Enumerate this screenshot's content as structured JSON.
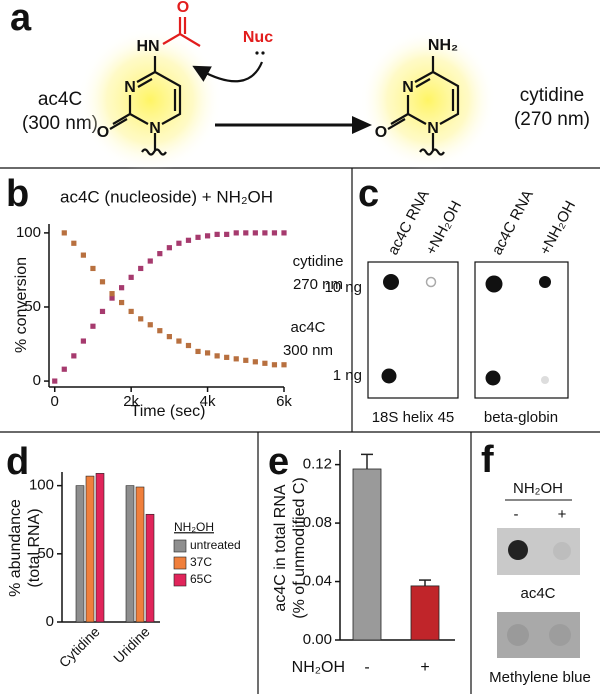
{
  "panel_a": {
    "label": "a",
    "left_label": [
      "ac4C",
      "(300 nm)"
    ],
    "right_label": [
      "cytidine",
      "(270 nm)"
    ],
    "nucleophile": "Nuc",
    "left_atoms": [
      "HN",
      "O",
      "N",
      "O",
      "N"
    ],
    "right_atoms": [
      "NH₂",
      "N",
      "O",
      "N"
    ]
  },
  "chart_data": [
    {
      "type": "scatter",
      "label": "b",
      "title": "ac4C (nucleoside) + NH₂OH",
      "x_label": "Time (sec)",
      "y_label": "% conversion",
      "x": [
        0,
        250,
        500,
        750,
        1000,
        1250,
        1500,
        1750,
        2000,
        2250,
        2500,
        2750,
        3000,
        3250,
        3500,
        3750,
        4000,
        4250,
        4500,
        4750,
        5000,
        5250,
        5500,
        5750,
        6000
      ],
      "series": [
        {
          "name": "cytidine",
          "wavelength": "270 nm",
          "color": "#a63a6e",
          "values": [
            0,
            8,
            17,
            27,
            37,
            47,
            56,
            63,
            70,
            76,
            81,
            86,
            90,
            93,
            95,
            97,
            98,
            99,
            99,
            100,
            100,
            100,
            100,
            100,
            100
          ]
        },
        {
          "name": "ac4C",
          "wavelength": "300 nm",
          "color": "#b8703f",
          "values": [
            null,
            100,
            93,
            85,
            76,
            67,
            59,
            53,
            47,
            42,
            38,
            34,
            30,
            27,
            24,
            20,
            19,
            17,
            16,
            15,
            14,
            13,
            12,
            11,
            11
          ]
        }
      ],
      "xlim": [
        -150,
        6000
      ],
      "xticks": [
        0,
        {
          "value": 2000,
          "label": "2k"
        },
        {
          "value": 4000,
          "label": "4k"
        },
        {
          "value": 6000,
          "label": "6k"
        }
      ],
      "ylim": [
        -4,
        106
      ],
      "yticks": [
        0,
        50,
        100
      ]
    },
    {
      "type": "bar",
      "label": "d",
      "y_label": [
        "% abundance",
        "(total RNA)"
      ],
      "categories": [
        "Cytidine",
        "Uridine"
      ],
      "legend_title": "NH₂OH",
      "series": [
        {
          "name": "untreated",
          "color": "#8e8e8e",
          "values": [
            100,
            100
          ]
        },
        {
          "name": "37C",
          "color": "#f07f3c",
          "values": [
            107,
            99
          ]
        },
        {
          "name": "65C",
          "color": "#e0245a",
          "values": [
            109,
            79
          ]
        }
      ],
      "ylim": [
        0,
        110
      ],
      "yticks": [
        0,
        50,
        100
      ]
    },
    {
      "type": "errorbar",
      "label": "e",
      "y_label": [
        "ac4C in total RNA",
        "(% of unmodified C)"
      ],
      "x_label": "NH₂OH",
      "categories": [
        "-",
        "+"
      ],
      "values": [
        0.117,
        0.037
      ],
      "errors": [
        0.01,
        0.004
      ],
      "colors": [
        "#9a9a9a",
        "#c0252a"
      ],
      "ylim": [
        0,
        0.13
      ],
      "yticks": [
        {
          "value": 0,
          "label": "0.00"
        },
        0.04,
        0.08,
        0.12
      ]
    }
  ],
  "panel_c": {
    "label": "c",
    "columns": [
      "ac4C RNA",
      "+NH₂OH"
    ],
    "rows": [
      "10 ng",
      "1 ng"
    ],
    "blots": [
      "18S helix 45",
      "beta-globin"
    ]
  },
  "panel_f": {
    "label": "f",
    "treatment": "NH₂OH",
    "columns": [
      "-",
      "+"
    ],
    "blots": [
      "ac4C",
      "Methylene blue"
    ]
  }
}
